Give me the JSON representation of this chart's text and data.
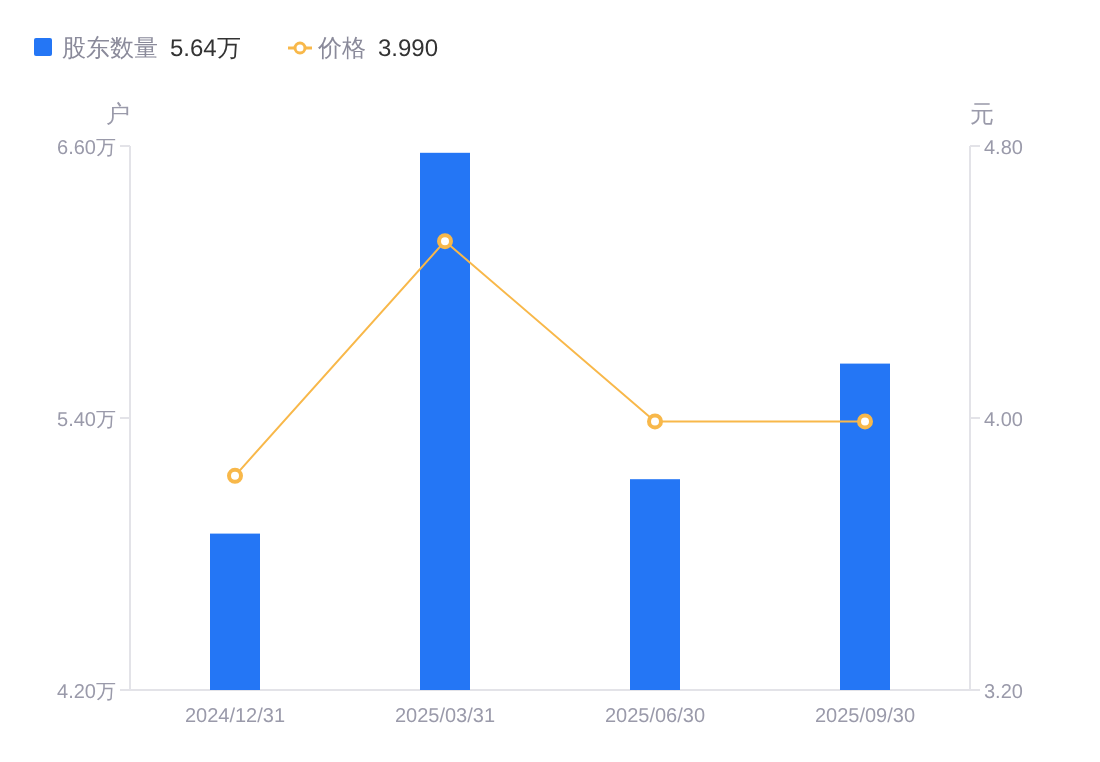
{
  "chart_data": {
    "type": "bar",
    "categories": [
      "2024/12/31",
      "2025/03/31",
      "2025/06/30",
      "2025/09/30"
    ],
    "series": [
      {
        "name": "股东数量",
        "color": "#2476f5",
        "values": [
          4.89,
          6.57,
          5.13,
          5.64
        ]
      },
      {
        "name": "价格",
        "type": "line",
        "axis": "y2",
        "color": "#f8b84a",
        "marker": "circle",
        "values": [
          3.83,
          4.52,
          3.99,
          3.99
        ]
      }
    ],
    "annotations": [
      "5.64万",
      "3.990"
    ],
    "ylabel": "户",
    "y2label": "元",
    "ylim": [
      4.2,
      6.6
    ],
    "yticks": [
      {
        "value": 4.2,
        "label": "4.20万"
      },
      {
        "value": 5.4,
        "label": "5.40万"
      },
      {
        "value": 6.6,
        "label": "6.60万"
      }
    ],
    "y2lim": [
      3.2,
      4.8
    ],
    "y2ticks": [
      {
        "value": 3.2,
        "label": "3.20"
      },
      {
        "value": 4.0,
        "label": "4.00"
      },
      {
        "value": 4.8,
        "label": "4.80"
      }
    ],
    "legend": "top left",
    "grid": false
  }
}
